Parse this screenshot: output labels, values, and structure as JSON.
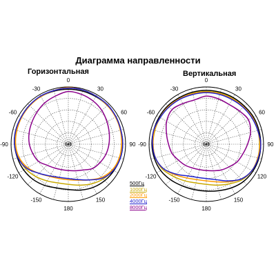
{
  "title": "Диаграмма направленности",
  "chart_data": [
    {
      "type": "polar",
      "title": "Горизонтальная",
      "angular_tick_labels": [
        "0",
        "30",
        "60",
        "90",
        "150",
        "180",
        "-150",
        "-120",
        "-90",
        "-60",
        "-30"
      ],
      "center_label": "0dB",
      "radial_rings": 5,
      "grid": true,
      "series": [
        {
          "name": "500Гц",
          "color": "#000000",
          "radii": [
            0.96,
            0.96,
            0.96,
            0.96,
            0.96,
            0.95,
            0.95,
            0.94,
            0.92,
            0.9,
            0.87,
            0.83,
            0.79,
            0.79,
            0.83,
            0.87,
            0.9,
            0.92,
            0.94,
            0.95,
            0.95,
            0.96,
            0.96,
            0.96
          ]
        },
        {
          "name": "1000Гц",
          "color": "#c8a800",
          "radii": [
            0.98,
            0.98,
            0.97,
            0.96,
            0.96,
            0.95,
            0.94,
            0.93,
            0.9,
            0.86,
            0.8,
            0.74,
            0.7,
            0.7,
            0.74,
            0.8,
            0.86,
            0.9,
            0.93,
            0.94,
            0.95,
            0.96,
            0.96,
            0.97
          ]
        },
        {
          "name": "2000Гц",
          "color": "#ff9900",
          "radii": [
            0.99,
            0.98,
            0.97,
            0.96,
            0.95,
            0.94,
            0.93,
            0.92,
            0.89,
            0.82,
            0.72,
            0.65,
            0.62,
            0.62,
            0.65,
            0.72,
            0.82,
            0.89,
            0.92,
            0.93,
            0.94,
            0.95,
            0.96,
            0.97
          ]
        },
        {
          "name": "4000Гц",
          "color": "#1f1fcc",
          "radii": [
            0.98,
            0.98,
            0.97,
            0.97,
            0.96,
            0.95,
            0.95,
            0.94,
            0.91,
            0.84,
            0.72,
            0.64,
            0.6,
            0.6,
            0.64,
            0.72,
            0.84,
            0.91,
            0.94,
            0.95,
            0.95,
            0.96,
            0.97,
            0.97
          ]
        },
        {
          "name": "8000Гц",
          "color": "#8b008b",
          "radii": [
            0.92,
            0.9,
            0.87,
            0.83,
            0.78,
            0.74,
            0.71,
            0.68,
            0.64,
            0.6,
            0.52,
            0.48,
            0.46,
            0.46,
            0.48,
            0.52,
            0.6,
            0.64,
            0.68,
            0.71,
            0.74,
            0.78,
            0.83,
            0.87
          ]
        }
      ]
    },
    {
      "type": "polar",
      "title": "Вертикальная",
      "angular_tick_labels": [
        "0",
        "30",
        "60",
        "90",
        "120",
        "150",
        "180",
        "-150",
        "-120",
        "-90",
        "-60",
        "-30"
      ],
      "center_label": "0dB",
      "radial_rings": 5,
      "grid": true,
      "series": [
        {
          "name": "500Гц",
          "color": "#000000",
          "radii": [
            0.94,
            0.94,
            0.94,
            0.94,
            0.95,
            0.95,
            0.95,
            0.95,
            0.94,
            0.92,
            0.88,
            0.84,
            0.82,
            0.82,
            0.84,
            0.88,
            0.92,
            0.94,
            0.95,
            0.95,
            0.95,
            0.95,
            0.94,
            0.94
          ]
        },
        {
          "name": "1000Гц",
          "color": "#c8a800",
          "radii": [
            0.92,
            0.92,
            0.92,
            0.92,
            0.93,
            0.93,
            0.93,
            0.93,
            0.92,
            0.88,
            0.8,
            0.74,
            0.7,
            0.7,
            0.74,
            0.8,
            0.88,
            0.92,
            0.93,
            0.93,
            0.93,
            0.93,
            0.92,
            0.92
          ]
        },
        {
          "name": "2000Гц",
          "color": "#ff9900",
          "radii": [
            0.91,
            0.91,
            0.91,
            0.92,
            0.93,
            0.93,
            0.94,
            0.93,
            0.92,
            0.86,
            0.76,
            0.68,
            0.64,
            0.64,
            0.68,
            0.76,
            0.86,
            0.92,
            0.93,
            0.94,
            0.93,
            0.93,
            0.92,
            0.91
          ]
        },
        {
          "name": "4000Гц",
          "color": "#1f1fcc",
          "radii": [
            0.9,
            0.9,
            0.9,
            0.91,
            0.92,
            0.93,
            0.95,
            0.94,
            0.92,
            0.86,
            0.74,
            0.64,
            0.6,
            0.6,
            0.64,
            0.74,
            0.86,
            0.92,
            0.94,
            0.95,
            0.93,
            0.92,
            0.91,
            0.9
          ]
        },
        {
          "name": "8000Гц",
          "color": "#8b008b",
          "radii": [
            0.84,
            0.82,
            0.8,
            0.82,
            0.85,
            0.8,
            0.72,
            0.66,
            0.62,
            0.56,
            0.52,
            0.48,
            0.46,
            0.46,
            0.48,
            0.52,
            0.56,
            0.62,
            0.66,
            0.72,
            0.8,
            0.85,
            0.82,
            0.8
          ]
        }
      ]
    }
  ]
}
